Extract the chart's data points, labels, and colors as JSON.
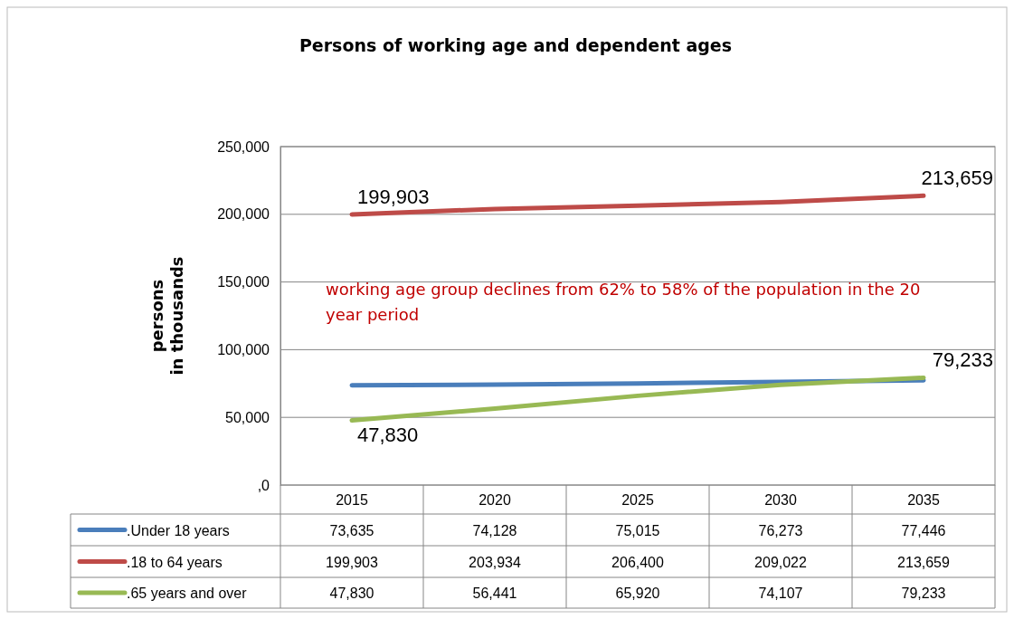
{
  "chart_data": {
    "type": "line",
    "title": "Persons of working age and dependent ages",
    "ylabel": "persons\nin thousands",
    "categories": [
      "2015",
      "2020",
      "2025",
      "2030",
      "2035"
    ],
    "series": [
      {
        "name": ".Under 18 years",
        "color": "#4a7ebb",
        "values": [
          73635,
          74128,
          75015,
          76273,
          77446
        ],
        "value_labels": [
          "73,635",
          "74,128",
          "75,015",
          "76,273",
          "77,446"
        ]
      },
      {
        "name": ".18 to 64 years",
        "color": "#be4b48",
        "values": [
          199903,
          203934,
          206400,
          209022,
          213659
        ],
        "value_labels": [
          "199,903",
          "203,934",
          "206,400",
          "209,022",
          "213,659"
        ]
      },
      {
        "name": ".65 years and over",
        "color": "#98b954",
        "values": [
          47830,
          56441,
          65920,
          74107,
          79233
        ],
        "value_labels": [
          "47,830",
          "56,441",
          "65,920",
          "74,107",
          "79,233"
        ]
      }
    ],
    "ylim": [
      0,
      250000
    ],
    "yticks": [
      {
        "value": 0,
        "label": ",0"
      },
      {
        "value": 50000,
        "label": "50,000"
      },
      {
        "value": 100000,
        "label": "100,000"
      },
      {
        "value": 150000,
        "label": "150,000"
      },
      {
        "value": 200000,
        "label": "200,000"
      },
      {
        "value": 250000,
        "label": "250,000"
      }
    ],
    "grid": "y",
    "legend": "bottom",
    "marker": "none",
    "line_style": "solid",
    "annotations": [
      "working age group declines from 62% to 58% of the population in the 20 year period",
      {
        "text": "199,903",
        "x": "2015",
        "y": 199903
      },
      {
        "text": "213,659",
        "x": "2035",
        "y": 213659
      },
      {
        "text": "47,830",
        "x": "2015",
        "y": 47830
      },
      {
        "text": "79,233",
        "x": "2035",
        "y": 79233
      }
    ]
  }
}
